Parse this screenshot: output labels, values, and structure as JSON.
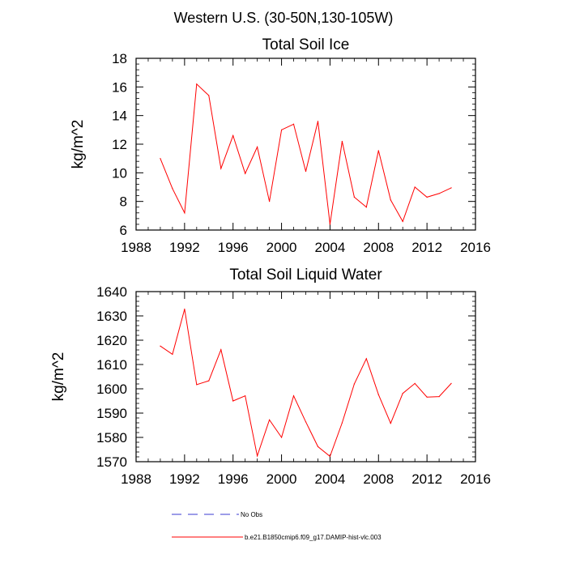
{
  "figure_title": "Western U.S. (30-50N,130-105W)",
  "chart_data": [
    {
      "type": "line",
      "title": "Total Soil Ice",
      "xlabel": "",
      "ylabel": "kg/m^2",
      "xlim": [
        1988,
        2016
      ],
      "ylim": [
        6,
        18
      ],
      "xticks": [
        1988,
        1992,
        1996,
        2000,
        2004,
        2008,
        2012,
        2016
      ],
      "yticks": [
        6,
        8,
        10,
        12,
        14,
        16,
        18
      ],
      "series": [
        {
          "name": "b.e21.B1850cmip6.f09_g17.DAMIP-hist-vlc.003",
          "color": "#ff0000",
          "x": [
            1990,
            1991,
            1992,
            1993,
            1994,
            1995,
            1996,
            1997,
            1998,
            1999,
            2000,
            2001,
            2002,
            2003,
            2004,
            2005,
            2006,
            2007,
            2008,
            2009,
            2010,
            2011,
            2012,
            2013,
            2014
          ],
          "y": [
            11.0,
            8.9,
            7.2,
            16.2,
            15.4,
            10.3,
            12.6,
            9.95,
            11.8,
            8.0,
            13.0,
            13.4,
            10.1,
            13.6,
            6.4,
            12.2,
            8.3,
            7.6,
            11.55,
            8.1,
            6.6,
            9.0,
            8.3,
            8.55,
            8.95
          ]
        }
      ]
    },
    {
      "type": "line",
      "title": "Total Soil Liquid Water",
      "xlabel": "",
      "ylabel": "kg/m^2",
      "xlim": [
        1988,
        2016
      ],
      "ylim": [
        1570,
        1640
      ],
      "xticks": [
        1988,
        1992,
        1996,
        2000,
        2004,
        2008,
        2012,
        2016
      ],
      "yticks": [
        1570,
        1580,
        1590,
        1600,
        1610,
        1620,
        1630,
        1640
      ],
      "series": [
        {
          "name": "b.e21.B1850cmip6.f09_g17.DAMIP-hist-vlc.003",
          "color": "#ff0000",
          "x": [
            1990,
            1991,
            1992,
            1993,
            1994,
            1995,
            1996,
            1997,
            1998,
            1999,
            2000,
            2001,
            2002,
            2003,
            2004,
            2005,
            2006,
            2007,
            2008,
            2009,
            2010,
            2011,
            2012,
            2013,
            2014
          ],
          "y": [
            1617.6,
            1614.2,
            1632.8,
            1601.7,
            1603.3,
            1616.1,
            1595.0,
            1597.1,
            1572.4,
            1587.2,
            1580.0,
            1597.1,
            1586.4,
            1576.2,
            1572.2,
            1586.0,
            1602.0,
            1612.4,
            1597.6,
            1585.8,
            1598.1,
            1602.2,
            1596.6,
            1596.8,
            1602.2
          ]
        }
      ]
    }
  ],
  "legend": [
    {
      "label": "No Obs",
      "style": "dashed",
      "color": "#3b3bd1"
    },
    {
      "label": "b.e21.B1850cmip6.f09_g17.DAMIP-hist-vlc.003",
      "style": "solid",
      "color": "#ff0000"
    }
  ]
}
